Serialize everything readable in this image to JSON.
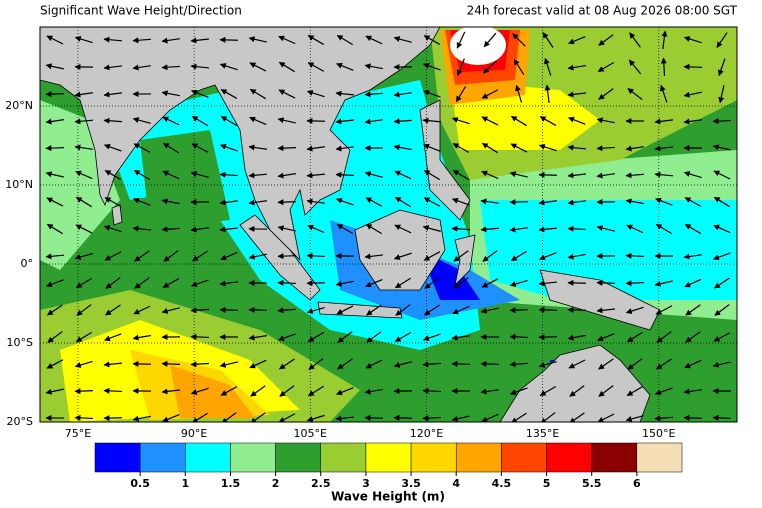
{
  "header": {
    "title": "Significant Wave Height/Direction",
    "valid": "24h forecast valid at 08 Aug 2026 08:00 SGT"
  },
  "map": {
    "lonlim": [
      70.1,
      160.1
    ],
    "latlim": [
      -20,
      30
    ],
    "lon_ticks": [
      {
        "value": 75,
        "label": "75°E"
      },
      {
        "value": 90,
        "label": "90°E"
      },
      {
        "value": 105,
        "label": "105°E"
      },
      {
        "value": 120,
        "label": "120°E"
      },
      {
        "value": 135,
        "label": "135°E"
      },
      {
        "value": 150,
        "label": "150°E"
      }
    ],
    "lat_ticks": [
      {
        "value": 20,
        "label": "20°N"
      },
      {
        "value": 10,
        "label": "10°N"
      },
      {
        "value": 0,
        "label": "0°"
      },
      {
        "value": -10,
        "label": "10°S"
      },
      {
        "value": -20,
        "label": "20°S"
      }
    ]
  },
  "colorbar": {
    "title": "Wave Height (m)",
    "ticks": [
      0.5,
      1,
      1.5,
      2,
      2.5,
      3,
      3.5,
      4,
      4.5,
      5,
      5.5,
      6
    ],
    "colors": [
      "#0000ff",
      "#1e90ff",
      "#00ffff",
      "#90ee90",
      "#2e9e2e",
      "#9acd32",
      "#ffff00",
      "#ffd700",
      "#ffa500",
      "#ff4500",
      "#ff0000",
      "#8b0000",
      "#f5deb3"
    ]
  }
}
